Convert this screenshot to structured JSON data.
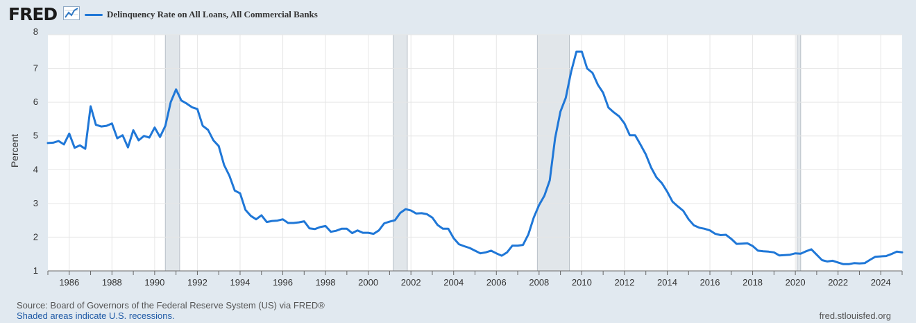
{
  "header": {
    "logo_text": "FRED",
    "logo_icon": "line-chart-icon",
    "legend_label": "Delinquency Rate on All Loans, All Commercial Banks"
  },
  "footer": {
    "source": "Source: Board of Governors of the Federal Reserve System (US) via FRED®",
    "shaded": "Shaded areas indicate U.S. recessions.",
    "site": "fred.stlouisfed.org"
  },
  "colors": {
    "line": "#1f77d7",
    "background": "#e1e9f0",
    "plot": "#ffffff",
    "recession": "#e1e6ea",
    "grid": "#e6e6e6"
  },
  "chart_data": {
    "type": "line",
    "title": "Delinquency Rate on All Loans, All Commercial Banks",
    "xlabel": "",
    "ylabel": "Percent",
    "ylim": [
      1,
      8
    ],
    "xlim": [
      1985.0,
      2025.0
    ],
    "yticks": [
      1,
      2,
      3,
      4,
      5,
      6,
      7,
      8
    ],
    "xticks": [
      1986,
      1988,
      1990,
      1992,
      1994,
      1996,
      1998,
      2000,
      2002,
      2004,
      2006,
      2008,
      2010,
      2012,
      2014,
      2016,
      2018,
      2020,
      2022,
      2024
    ],
    "grid": true,
    "legend": "top-left",
    "recessions": [
      [
        1990.5,
        1991.17
      ],
      [
        2001.17,
        2001.83
      ],
      [
        2007.92,
        2009.42
      ],
      [
        2020.08,
        2020.25
      ]
    ],
    "series": [
      {
        "name": "Delinquency Rate on All Loans, All Commercial Banks",
        "x": [
          1985.0,
          1985.25,
          1985.5,
          1985.75,
          1986.0,
          1986.25,
          1986.5,
          1986.75,
          1987.0,
          1987.25,
          1987.5,
          1987.75,
          1988.0,
          1988.25,
          1988.5,
          1988.75,
          1989.0,
          1989.25,
          1989.5,
          1989.75,
          1990.0,
          1990.25,
          1990.5,
          1990.75,
          1991.0,
          1991.25,
          1991.5,
          1991.75,
          1992.0,
          1992.25,
          1992.5,
          1992.75,
          1993.0,
          1993.25,
          1993.5,
          1993.75,
          1994.0,
          1994.25,
          1994.5,
          1994.75,
          1995.0,
          1995.25,
          1995.5,
          1995.75,
          1996.0,
          1996.25,
          1996.5,
          1996.75,
          1997.0,
          1997.25,
          1997.5,
          1997.75,
          1998.0,
          1998.25,
          1998.5,
          1998.75,
          1999.0,
          1999.25,
          1999.5,
          1999.75,
          2000.0,
          2000.25,
          2000.5,
          2000.75,
          2001.0,
          2001.25,
          2001.5,
          2001.75,
          2002.0,
          2002.25,
          2002.5,
          2002.75,
          2003.0,
          2003.25,
          2003.5,
          2003.75,
          2004.0,
          2004.25,
          2004.5,
          2004.75,
          2005.0,
          2005.25,
          2005.5,
          2005.75,
          2006.0,
          2006.25,
          2006.5,
          2006.75,
          2007.0,
          2007.25,
          2007.5,
          2007.75,
          2008.0,
          2008.25,
          2008.5,
          2008.75,
          2009.0,
          2009.25,
          2009.5,
          2009.75,
          2010.0,
          2010.25,
          2010.5,
          2010.75,
          2011.0,
          2011.25,
          2011.5,
          2011.75,
          2012.0,
          2012.25,
          2012.5,
          2012.75,
          2013.0,
          2013.25,
          2013.5,
          2013.75,
          2014.0,
          2014.25,
          2014.5,
          2014.75,
          2015.0,
          2015.25,
          2015.5,
          2015.75,
          2016.0,
          2016.25,
          2016.5,
          2016.75,
          2017.0,
          2017.25,
          2017.5,
          2017.75,
          2018.0,
          2018.25,
          2018.5,
          2018.75,
          2019.0,
          2019.25,
          2019.5,
          2019.75,
          2020.0,
          2020.25,
          2020.5,
          2020.75,
          2021.0,
          2021.25,
          2021.5,
          2021.75,
          2022.0,
          2022.25,
          2022.5,
          2022.75,
          2023.0,
          2023.25,
          2023.5,
          2023.75,
          2024.0,
          2024.25,
          2024.5,
          2024.75,
          2025.0
        ],
        "values": [
          4.79,
          4.8,
          4.85,
          4.75,
          5.07,
          4.65,
          4.72,
          4.62,
          5.88,
          5.33,
          5.28,
          5.3,
          5.37,
          4.93,
          5.02,
          4.66,
          5.17,
          4.87,
          5.0,
          4.95,
          5.25,
          4.97,
          5.3,
          6.0,
          6.38,
          6.05,
          5.96,
          5.85,
          5.8,
          5.3,
          5.18,
          4.87,
          4.7,
          4.14,
          3.82,
          3.38,
          3.3,
          2.81,
          2.63,
          2.53,
          2.65,
          2.45,
          2.48,
          2.49,
          2.53,
          2.42,
          2.42,
          2.44,
          2.47,
          2.26,
          2.24,
          2.3,
          2.33,
          2.16,
          2.19,
          2.25,
          2.25,
          2.12,
          2.2,
          2.13,
          2.13,
          2.1,
          2.2,
          2.41,
          2.46,
          2.5,
          2.72,
          2.83,
          2.79,
          2.7,
          2.71,
          2.68,
          2.58,
          2.36,
          2.25,
          2.25,
          1.97,
          1.79,
          1.73,
          1.68,
          1.6,
          1.52,
          1.55,
          1.6,
          1.52,
          1.45,
          1.55,
          1.75,
          1.75,
          1.77,
          2.08,
          2.58,
          2.95,
          3.23,
          3.68,
          4.93,
          5.72,
          6.13,
          6.9,
          7.5,
          7.5,
          7.0,
          6.87,
          6.52,
          6.28,
          5.84,
          5.7,
          5.58,
          5.37,
          5.02,
          5.02,
          4.74,
          4.45,
          4.06,
          3.77,
          3.6,
          3.35,
          3.05,
          2.91,
          2.78,
          2.53,
          2.35,
          2.28,
          2.25,
          2.2,
          2.1,
          2.06,
          2.07,
          1.95,
          1.8,
          1.81,
          1.82,
          1.74,
          1.6,
          1.58,
          1.57,
          1.55,
          1.46,
          1.47,
          1.48,
          1.52,
          1.51,
          1.58,
          1.64,
          1.48,
          1.32,
          1.28,
          1.3,
          1.25,
          1.2,
          1.2,
          1.23,
          1.22,
          1.23,
          1.33,
          1.42,
          1.43,
          1.44,
          1.5,
          1.57,
          1.55
        ]
      }
    ]
  }
}
